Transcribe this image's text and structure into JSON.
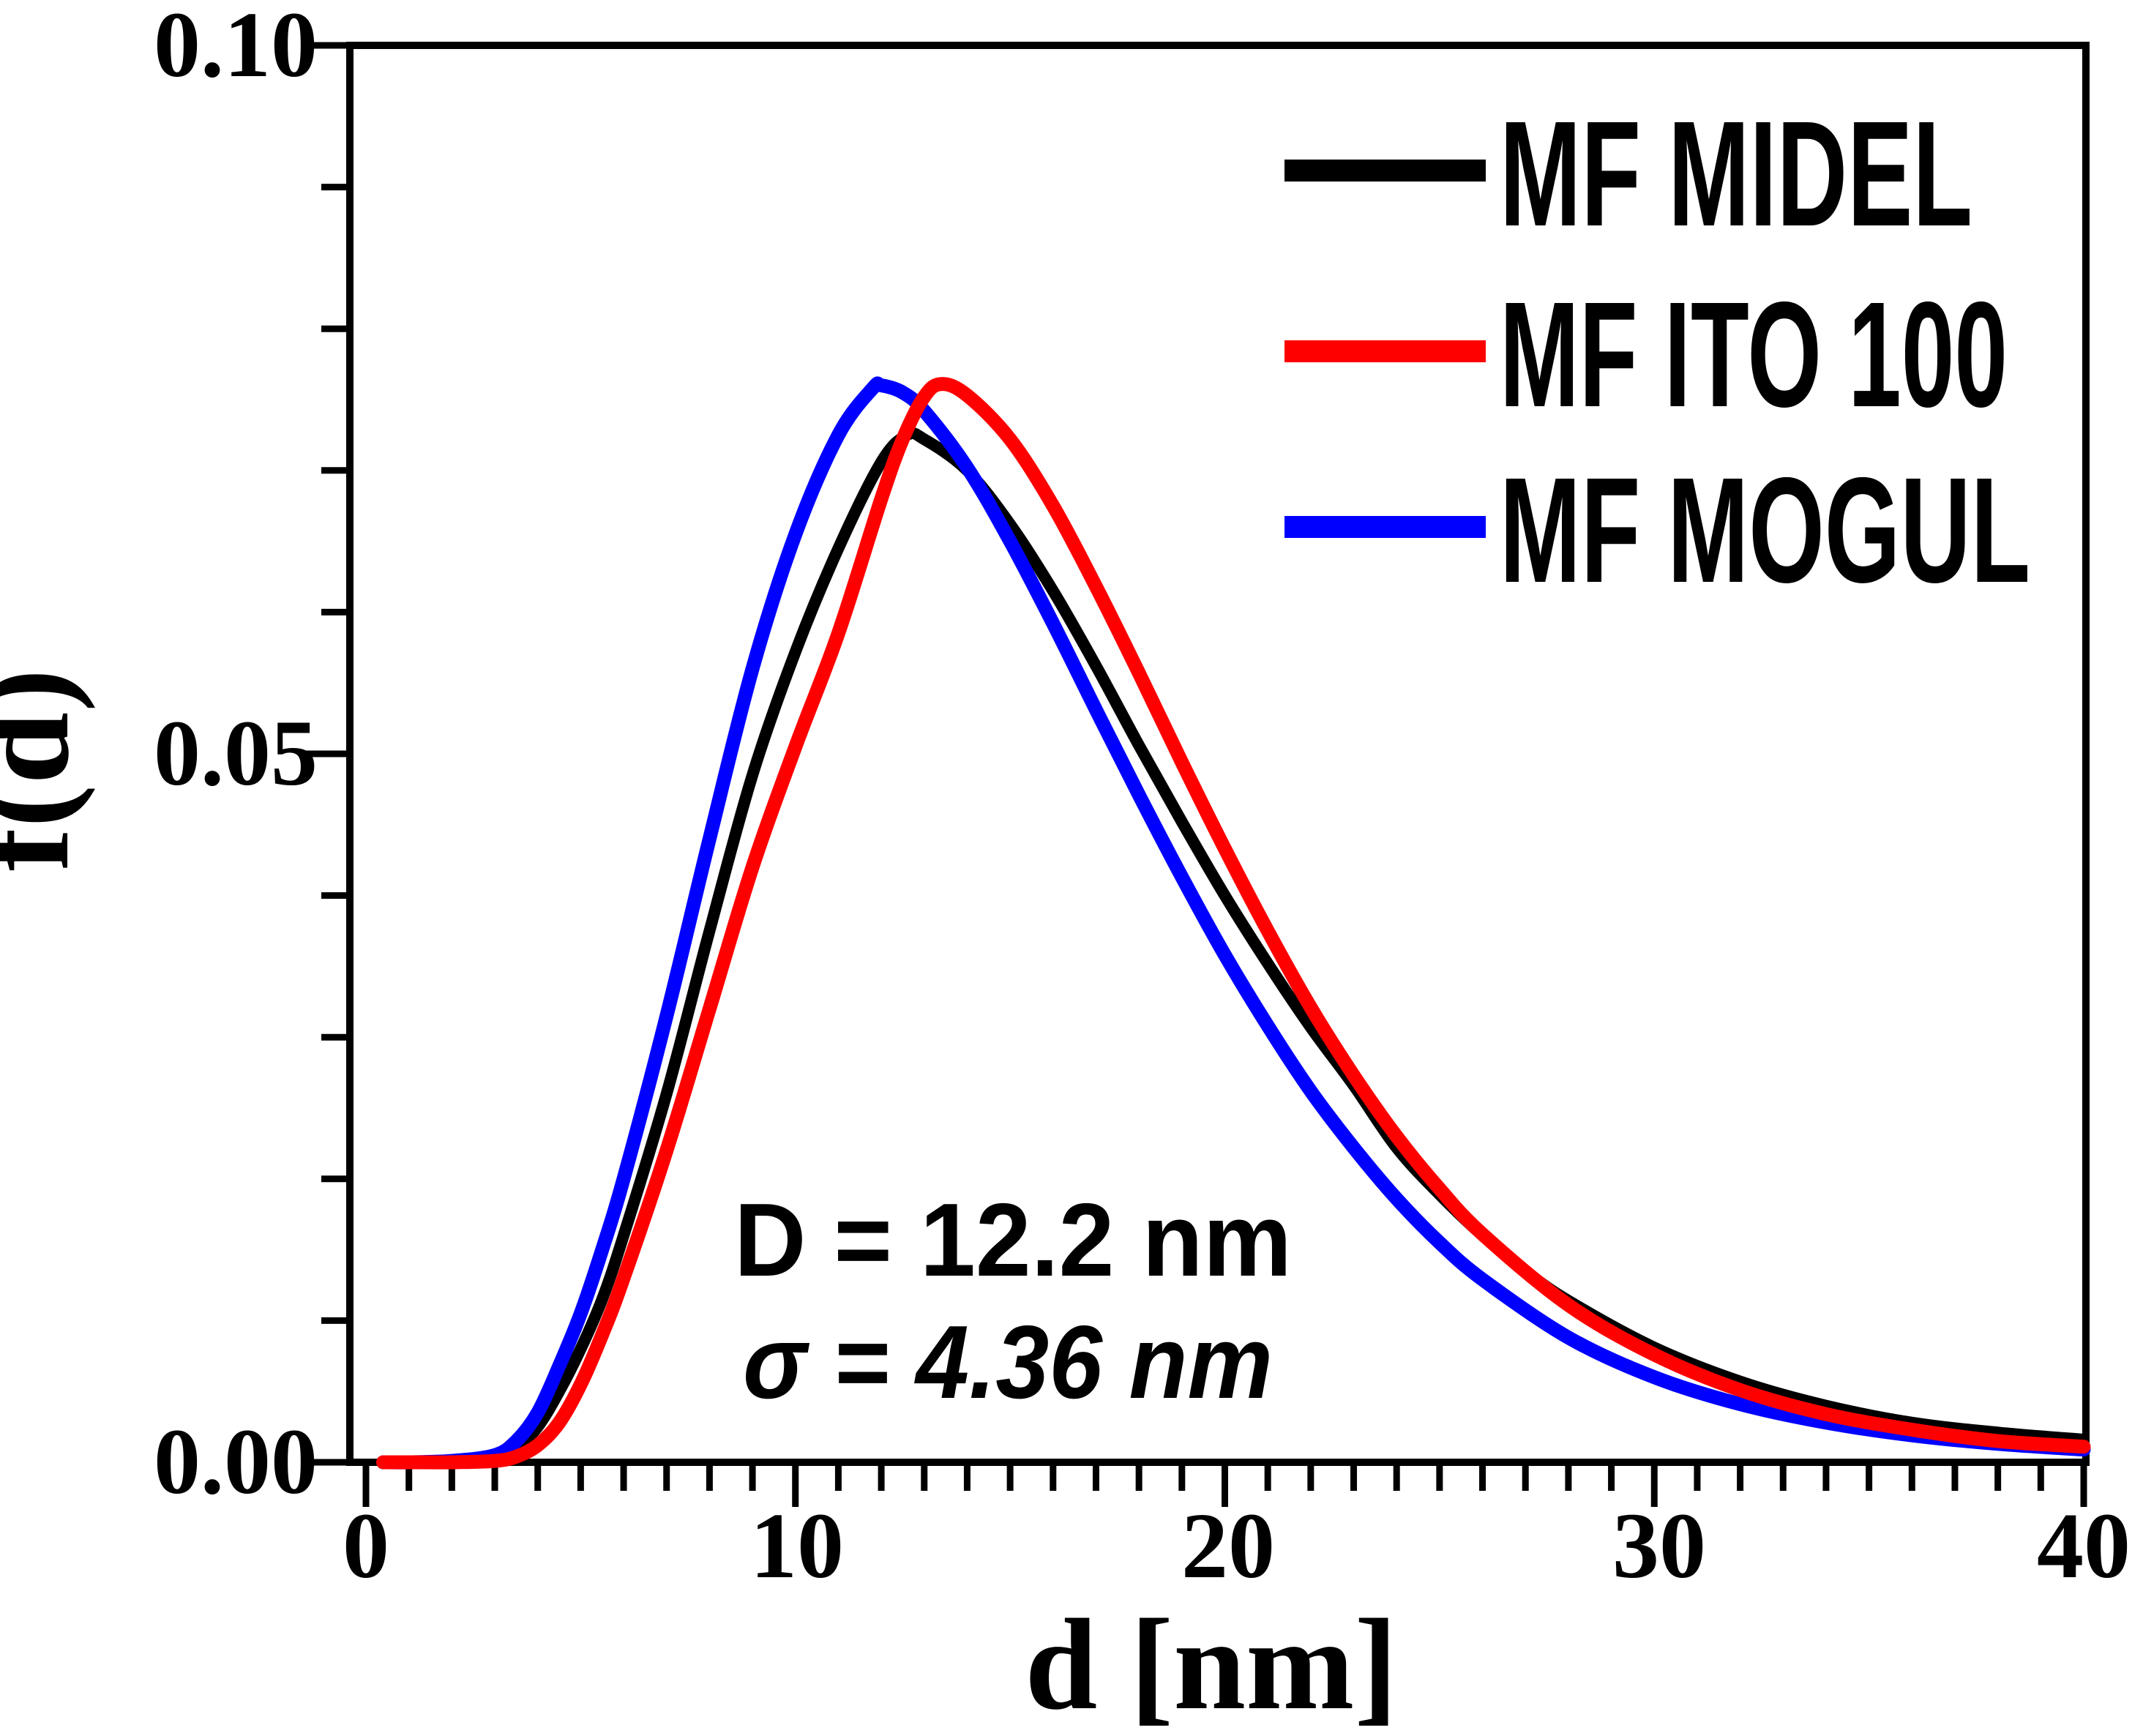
{
  "figure": {
    "background": "#ffffff",
    "frame_color": "#000000"
  },
  "chart_data": {
    "type": "line",
    "title": "",
    "xlabel": "d [nm]",
    "ylabel": "f(d)",
    "xlim": [
      0,
      40
    ],
    "ylim": [
      0,
      0.1
    ],
    "grid": false,
    "legend_position": "top-right",
    "x_ticks": {
      "major": [
        0,
        10,
        20,
        30,
        40
      ],
      "labels": [
        "0",
        "10",
        "20",
        "30",
        "40"
      ],
      "minor_step": 1
    },
    "y_ticks": {
      "major": [
        0,
        0.05,
        0.1
      ],
      "labels": [
        "0.00",
        "0.05",
        "0.10"
      ],
      "minor_step": 0.01
    },
    "series": [
      {
        "name": "MF MIDEL",
        "color": "#000000",
        "stroke_width": 16,
        "points": [
          [
            0.4,
            0
          ],
          [
            1,
            0
          ],
          [
            2,
            0.0001
          ],
          [
            3,
            0.0004
          ],
          [
            3.5,
            0.001
          ],
          [
            4,
            0.0025
          ],
          [
            4.5,
            0.005
          ],
          [
            5,
            0.008
          ],
          [
            5.5,
            0.0115
          ],
          [
            6,
            0.016
          ],
          [
            7,
            0.026
          ],
          [
            8,
            0.0375
          ],
          [
            9,
            0.0485
          ],
          [
            10,
            0.0572
          ],
          [
            11,
            0.0645
          ],
          [
            12,
            0.0706
          ],
          [
            12.6,
            0.0725
          ],
          [
            13,
            0.0722
          ],
          [
            14,
            0.07
          ],
          [
            15,
            0.0662
          ],
          [
            16,
            0.0615
          ],
          [
            17,
            0.0562
          ],
          [
            18,
            0.0506
          ],
          [
            19,
            0.0452
          ],
          [
            20,
            0.04
          ],
          [
            21,
            0.0352
          ],
          [
            22,
            0.0307
          ],
          [
            23,
            0.0266
          ],
          [
            24,
            0.0222
          ],
          [
            25,
            0.0189
          ],
          [
            26,
            0.016
          ],
          [
            27,
            0.0135
          ],
          [
            28,
            0.0114
          ],
          [
            30,
            0.0081
          ],
          [
            32,
            0.0057
          ],
          [
            34,
            0.004
          ],
          [
            36,
            0.0028
          ],
          [
            38,
            0.0021
          ],
          [
            40,
            0.0016
          ]
        ]
      },
      {
        "name": "MF MOGUL",
        "color": "#0000ff",
        "stroke_width": 19,
        "points": [
          [
            0.4,
            0
          ],
          [
            1,
            0
          ],
          [
            2,
            0.0001
          ],
          [
            3,
            0.0005
          ],
          [
            3.5,
            0.0015
          ],
          [
            4,
            0.0035
          ],
          [
            4.5,
            0.0068
          ],
          [
            5,
            0.0105
          ],
          [
            5.5,
            0.015
          ],
          [
            6,
            0.02
          ],
          [
            7,
            0.0315
          ],
          [
            8,
            0.044
          ],
          [
            9,
            0.056
          ],
          [
            10,
            0.0655
          ],
          [
            11,
            0.0725
          ],
          [
            11.8,
            0.0758
          ],
          [
            12,
            0.076
          ],
          [
            12.5,
            0.0755
          ],
          [
            13,
            0.0742
          ],
          [
            14,
            0.0702
          ],
          [
            15,
            0.065
          ],
          [
            16,
            0.0592
          ],
          [
            17,
            0.0531
          ],
          [
            18,
            0.0471
          ],
          [
            19,
            0.0413
          ],
          [
            20,
            0.0358
          ],
          [
            21,
            0.0308
          ],
          [
            22,
            0.0262
          ],
          [
            23,
            0.0222
          ],
          [
            24,
            0.0186
          ],
          [
            25,
            0.0155
          ],
          [
            26,
            0.0129
          ],
          [
            28,
            0.0088
          ],
          [
            30,
            0.006
          ],
          [
            32,
            0.0041
          ],
          [
            34,
            0.0028
          ],
          [
            36,
            0.0019
          ],
          [
            38,
            0.0013
          ],
          [
            40,
            0.0009
          ]
        ]
      },
      {
        "name": "MF ITO 100",
        "color": "#ff0000",
        "stroke_width": 19,
        "points": [
          [
            0.4,
            0
          ],
          [
            1,
            0
          ],
          [
            2,
            0
          ],
          [
            3,
            0.0001
          ],
          [
            3.5,
            0.0004
          ],
          [
            4,
            0.0012
          ],
          [
            4.5,
            0.0028
          ],
          [
            5,
            0.0055
          ],
          [
            5.5,
            0.009
          ],
          [
            6,
            0.013
          ],
          [
            7,
            0.022
          ],
          [
            8,
            0.032
          ],
          [
            9,
            0.042
          ],
          [
            10,
            0.0505
          ],
          [
            11,
            0.0585
          ],
          [
            12,
            0.068
          ],
          [
            12.5,
            0.0722
          ],
          [
            13,
            0.0752
          ],
          [
            13.4,
            0.0761
          ],
          [
            14,
            0.0753
          ],
          [
            15,
            0.0722
          ],
          [
            16,
            0.0675
          ],
          [
            17,
            0.0618
          ],
          [
            18,
            0.0557
          ],
          [
            19,
            0.0494
          ],
          [
            20,
            0.0433
          ],
          [
            21,
            0.0375
          ],
          [
            22,
            0.0321
          ],
          [
            23,
            0.0273
          ],
          [
            24,
            0.023
          ],
          [
            25,
            0.0193
          ],
          [
            26,
            0.0161
          ],
          [
            28,
            0.0111
          ],
          [
            30,
            0.0076
          ],
          [
            32,
            0.0051
          ],
          [
            34,
            0.0034
          ],
          [
            36,
            0.0023
          ],
          [
            38,
            0.0015
          ],
          [
            40,
            0.0011
          ]
        ]
      }
    ],
    "annotations": [
      {
        "text": "D = 12.2 nm",
        "color": "#101030",
        "style": "bold"
      },
      {
        "text": "σ = 4.36 nm",
        "color": "#1b2b5a",
        "style": "bold-italic"
      }
    ]
  },
  "legend": {
    "items": [
      {
        "label": "MF MIDEL",
        "color": "#000000"
      },
      {
        "label": "MF ITO 100",
        "color": "#ff0000"
      },
      {
        "label": "MF MOGUL",
        "color": "#0000ff"
      }
    ]
  }
}
